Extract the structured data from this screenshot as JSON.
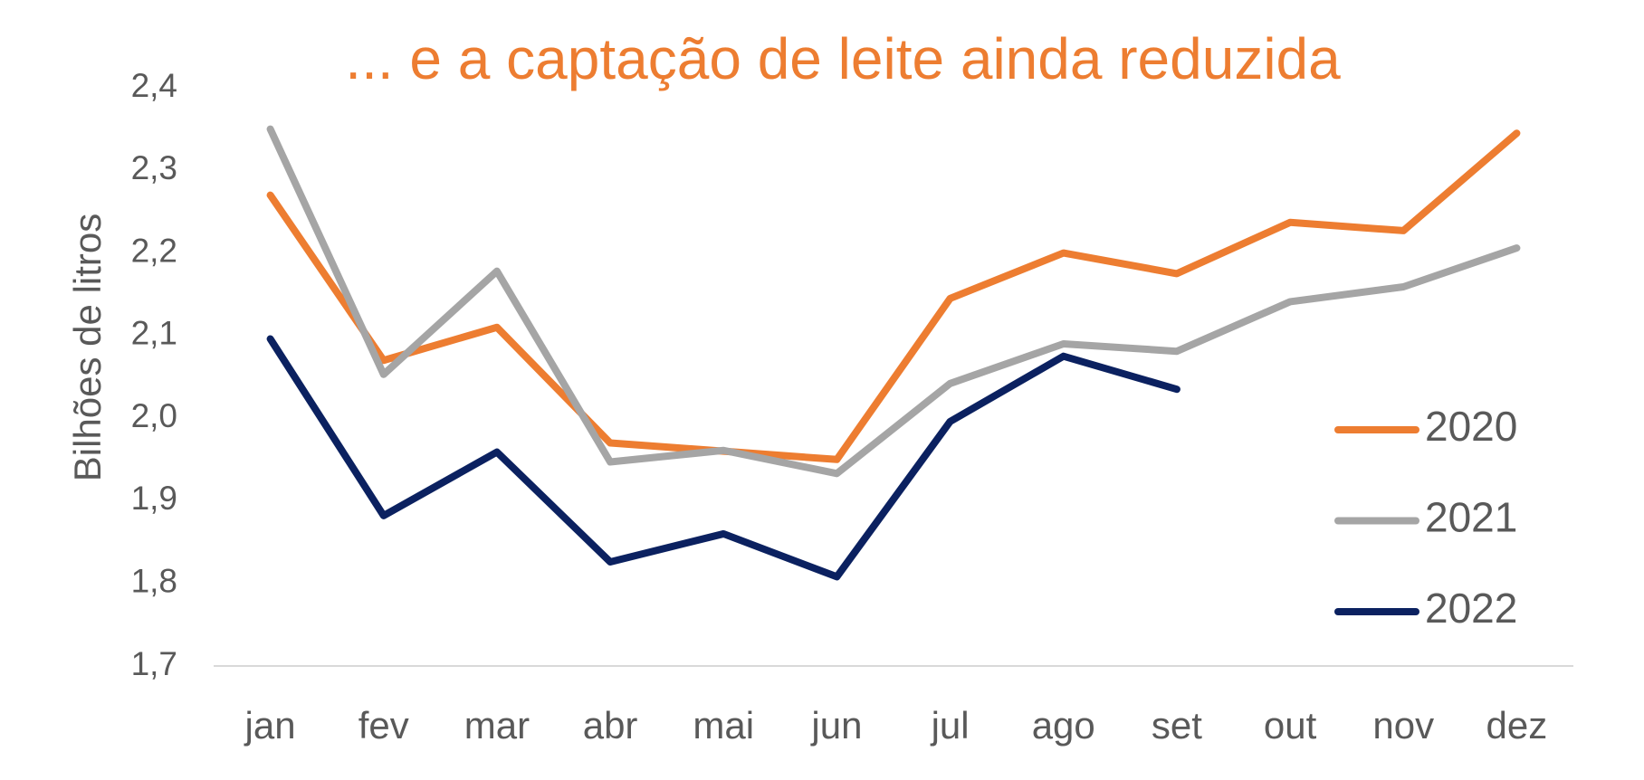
{
  "chart_data": {
    "type": "line",
    "title": "... e a captação de leite ainda reduzida",
    "y_label": "Bilhões de litros",
    "categories": [
      "jan",
      "fev",
      "mar",
      "abr",
      "mai",
      "jun",
      "jul",
      "ago",
      "set",
      "out",
      "nov",
      "dez"
    ],
    "series": [
      {
        "name": "2020",
        "color": "#ed7d31",
        "values": [
          2.27,
          2.07,
          2.11,
          1.97,
          1.96,
          1.95,
          2.145,
          2.2,
          2.175,
          2.237,
          2.227,
          2.345
        ]
      },
      {
        "name": "2021",
        "color": "#a5a5a5",
        "values": [
          2.35,
          2.053,
          2.178,
          1.947,
          1.961,
          1.933,
          2.042,
          2.09,
          2.081,
          2.141,
          2.159,
          2.206
        ]
      },
      {
        "name": "2022",
        "color": "#0b2160",
        "values": [
          2.096,
          1.882,
          1.959,
          1.826,
          1.86,
          1.808,
          1.996,
          2.075,
          2.035,
          null,
          null,
          null
        ]
      }
    ],
    "ylim": [
      1.7,
      2.4
    ],
    "yticks": [
      {
        "value": 1.7,
        "label": "1,7"
      },
      {
        "value": 1.8,
        "label": "1,8"
      },
      {
        "value": 1.9,
        "label": "1,9"
      },
      {
        "value": 2.0,
        "label": "2,0"
      },
      {
        "value": 2.1,
        "label": "2,1"
      },
      {
        "value": 2.2,
        "label": "2,2"
      },
      {
        "value": 2.3,
        "label": "2,3"
      },
      {
        "value": 2.4,
        "label": "2,4"
      }
    ],
    "grid": false,
    "legend": "right"
  }
}
